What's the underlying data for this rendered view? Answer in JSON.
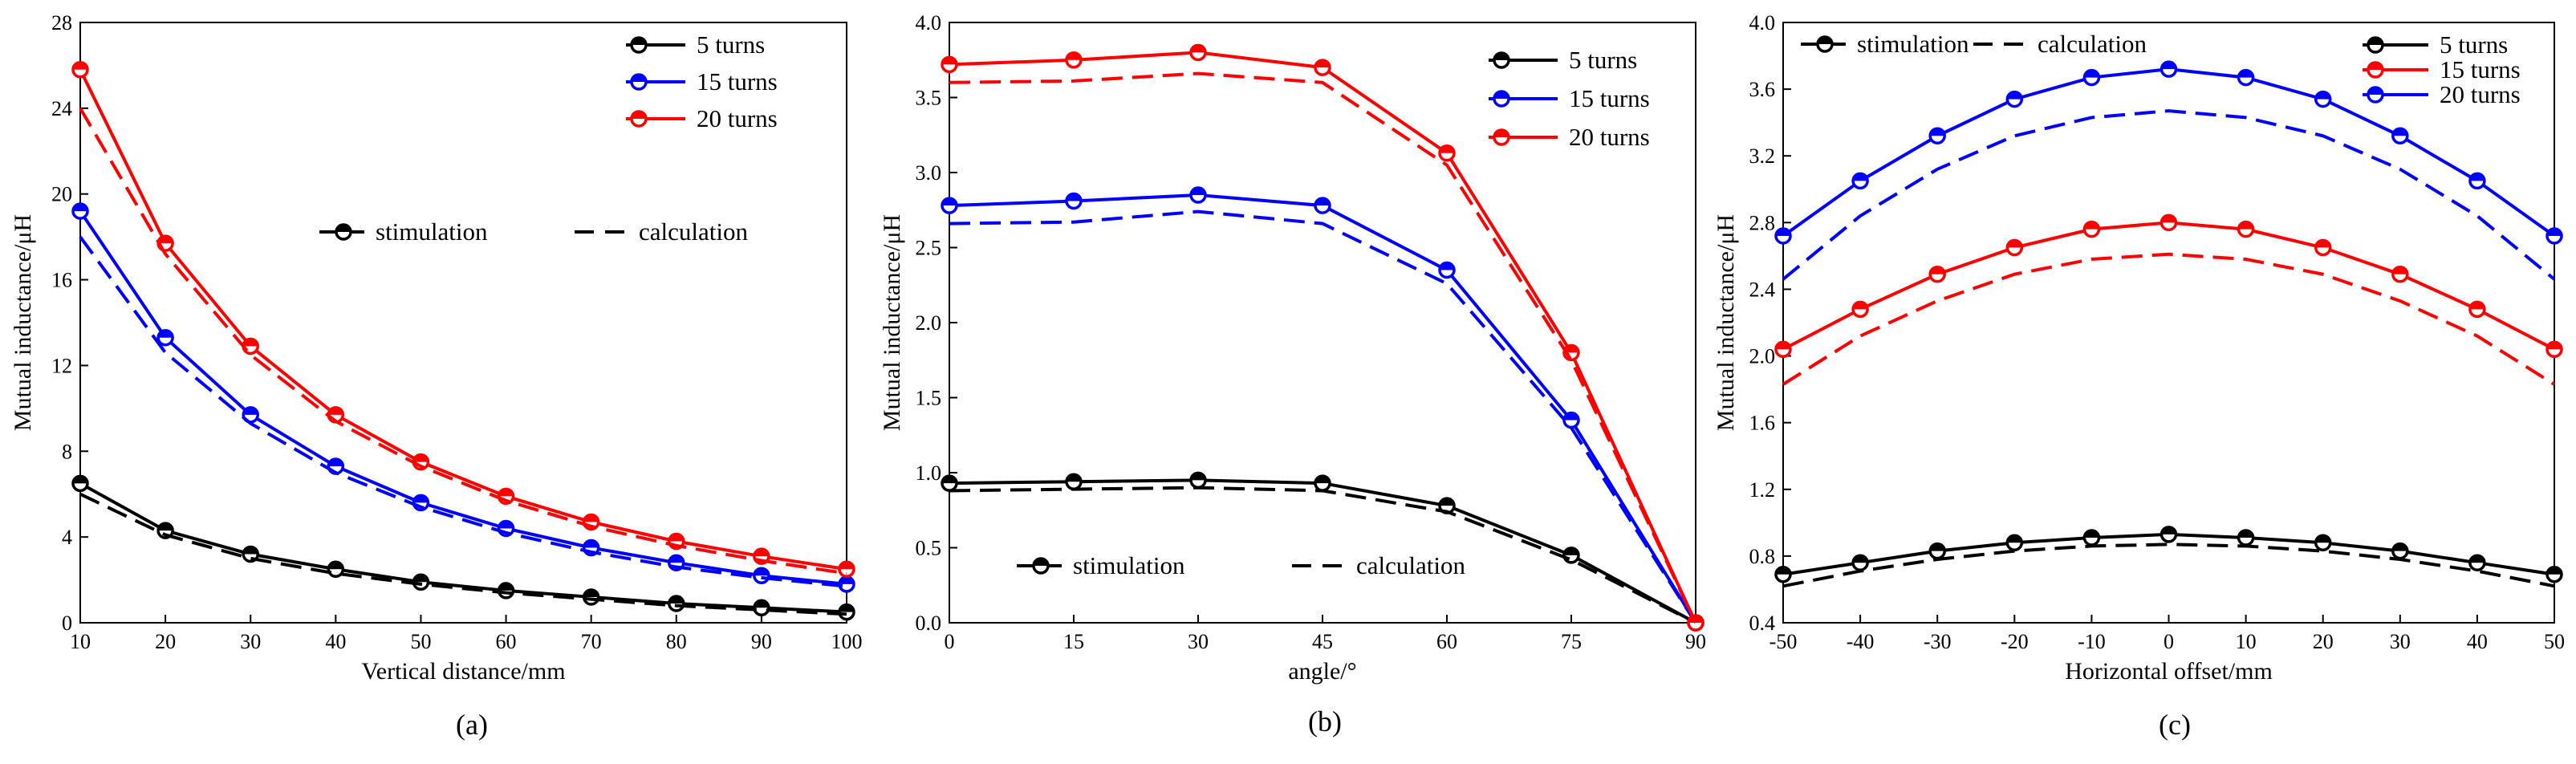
{
  "chart_data": [
    {
      "type": "line",
      "panel_label": "(a)",
      "xlabel": "Vertical distance/mm",
      "ylabel": "Mutual inductance/μH",
      "xlim": [
        10,
        100
      ],
      "ylim": [
        0,
        28
      ],
      "xticks": [
        10,
        20,
        30,
        40,
        50,
        60,
        70,
        80,
        90,
        100
      ],
      "yticks": [
        0,
        4,
        8,
        12,
        16,
        20,
        24,
        28
      ],
      "x": [
        10,
        20,
        30,
        40,
        50,
        60,
        70,
        80,
        90,
        100
      ],
      "series": [
        {
          "name": "5 turns",
          "color": "#000000",
          "style": "stimulation",
          "values": [
            6.5,
            4.3,
            3.2,
            2.5,
            1.9,
            1.5,
            1.2,
            0.9,
            0.7,
            0.5
          ]
        },
        {
          "name": "5 turns",
          "color": "#000000",
          "style": "calculation",
          "values": [
            6.0,
            4.1,
            3.0,
            2.3,
            1.8,
            1.4,
            1.1,
            0.8,
            0.6,
            0.4
          ]
        },
        {
          "name": "15 turns",
          "color": "#0000ff",
          "style": "stimulation",
          "values": [
            19.2,
            13.3,
            9.7,
            7.3,
            5.6,
            4.4,
            3.5,
            2.8,
            2.2,
            1.8
          ]
        },
        {
          "name": "15 turns",
          "color": "#0000ff",
          "style": "calculation",
          "values": [
            18.0,
            12.6,
            9.3,
            7.0,
            5.4,
            4.2,
            3.3,
            2.6,
            2.1,
            1.7
          ]
        },
        {
          "name": "20 turns",
          "color": "#ff0000",
          "style": "stimulation",
          "values": [
            25.8,
            17.7,
            12.9,
            9.7,
            7.5,
            5.9,
            4.7,
            3.8,
            3.1,
            2.5
          ]
        },
        {
          "name": "20 turns",
          "color": "#ff0000",
          "style": "calculation",
          "values": [
            24.0,
            17.2,
            12.5,
            9.4,
            7.3,
            5.7,
            4.5,
            3.6,
            2.9,
            2.3
          ]
        }
      ],
      "legend_turns": [
        "5 turns",
        "15 turns",
        "20 turns"
      ],
      "legend_styles": [
        "stimulation",
        "calculation"
      ]
    },
    {
      "type": "line",
      "panel_label": "(b)",
      "xlabel": "angle/°",
      "ylabel": "Mutual inductance/μH",
      "xlim": [
        0,
        90
      ],
      "ylim": [
        0,
        4.0
      ],
      "xticks": [
        0,
        15,
        30,
        45,
        60,
        75,
        90
      ],
      "yticks": [
        0.0,
        0.5,
        1.0,
        1.5,
        2.0,
        2.5,
        3.0,
        3.5,
        4.0
      ],
      "x": [
        0,
        15,
        30,
        45,
        60,
        75,
        90
      ],
      "series": [
        {
          "name": "5 turns",
          "color": "#000000",
          "style": "stimulation",
          "values": [
            0.93,
            0.94,
            0.95,
            0.93,
            0.78,
            0.45,
            0.0
          ]
        },
        {
          "name": "5 turns",
          "color": "#000000",
          "style": "calculation",
          "values": [
            0.88,
            0.89,
            0.9,
            0.88,
            0.74,
            0.42,
            0.0
          ]
        },
        {
          "name": "15 turns",
          "color": "#0000ff",
          "style": "stimulation",
          "values": [
            2.78,
            2.81,
            2.85,
            2.78,
            2.35,
            1.35,
            0.0
          ]
        },
        {
          "name": "15 turns",
          "color": "#0000ff",
          "style": "calculation",
          "values": [
            2.66,
            2.67,
            2.74,
            2.66,
            2.26,
            1.3,
            0.0
          ]
        },
        {
          "name": "20 turns",
          "color": "#ff0000",
          "style": "stimulation",
          "values": [
            3.72,
            3.75,
            3.8,
            3.7,
            3.13,
            1.8,
            0.0
          ]
        },
        {
          "name": "20 turns",
          "color": "#ff0000",
          "style": "calculation",
          "values": [
            3.6,
            3.61,
            3.66,
            3.6,
            3.05,
            1.75,
            0.0
          ]
        }
      ],
      "legend_turns": [
        "5 turns",
        "15 turns",
        "20 turns"
      ],
      "legend_styles": [
        "stimulation",
        "calculation"
      ]
    },
    {
      "type": "line",
      "panel_label": "(c)",
      "xlabel": "Horizontal offset/mm",
      "ylabel": "Mutual inductance/μH",
      "xlim": [
        -50,
        50
      ],
      "ylim": [
        0.4,
        4.0
      ],
      "xticks": [
        -50,
        -40,
        -30,
        -20,
        -10,
        0,
        10,
        20,
        30,
        40,
        50
      ],
      "yticks": [
        0.4,
        0.8,
        1.2,
        1.6,
        2.0,
        2.4,
        2.8,
        3.2,
        3.6,
        4.0
      ],
      "x": [
        -50,
        -40,
        -30,
        -20,
        -10,
        0,
        10,
        20,
        30,
        40,
        50
      ],
      "series": [
        {
          "name": "5 turns",
          "color": "#000000",
          "style": "stimulation",
          "values": [
            0.69,
            0.76,
            0.83,
            0.88,
            0.91,
            0.93,
            0.91,
            0.88,
            0.83,
            0.76,
            0.69
          ]
        },
        {
          "name": "5 turns",
          "color": "#000000",
          "style": "calculation",
          "values": [
            0.62,
            0.71,
            0.78,
            0.83,
            0.86,
            0.87,
            0.86,
            0.83,
            0.78,
            0.71,
            0.62
          ]
        },
        {
          "name": "15 turns",
          "color": "#ff0000",
          "style": "stimulation",
          "values": [
            2.04,
            2.28,
            2.49,
            2.65,
            2.76,
            2.8,
            2.76,
            2.65,
            2.49,
            2.28,
            2.04
          ]
        },
        {
          "name": "15 turns",
          "color": "#ff0000",
          "style": "calculation",
          "values": [
            1.83,
            2.12,
            2.33,
            2.49,
            2.58,
            2.61,
            2.58,
            2.49,
            2.33,
            2.12,
            1.83
          ]
        },
        {
          "name": "20 turns",
          "color": "#0000ff",
          "style": "stimulation",
          "values": [
            2.72,
            3.05,
            3.32,
            3.54,
            3.67,
            3.72,
            3.67,
            3.54,
            3.32,
            3.05,
            2.72
          ]
        },
        {
          "name": "20 turns",
          "color": "#0000ff",
          "style": "calculation",
          "values": [
            2.46,
            2.84,
            3.12,
            3.32,
            3.43,
            3.47,
            3.43,
            3.32,
            3.12,
            2.84,
            2.46
          ]
        }
      ],
      "legend_turns": [
        "5 turns",
        "15 turns",
        "20 turns"
      ],
      "legend_styles": [
        "stimulation",
        "calculation"
      ]
    }
  ]
}
